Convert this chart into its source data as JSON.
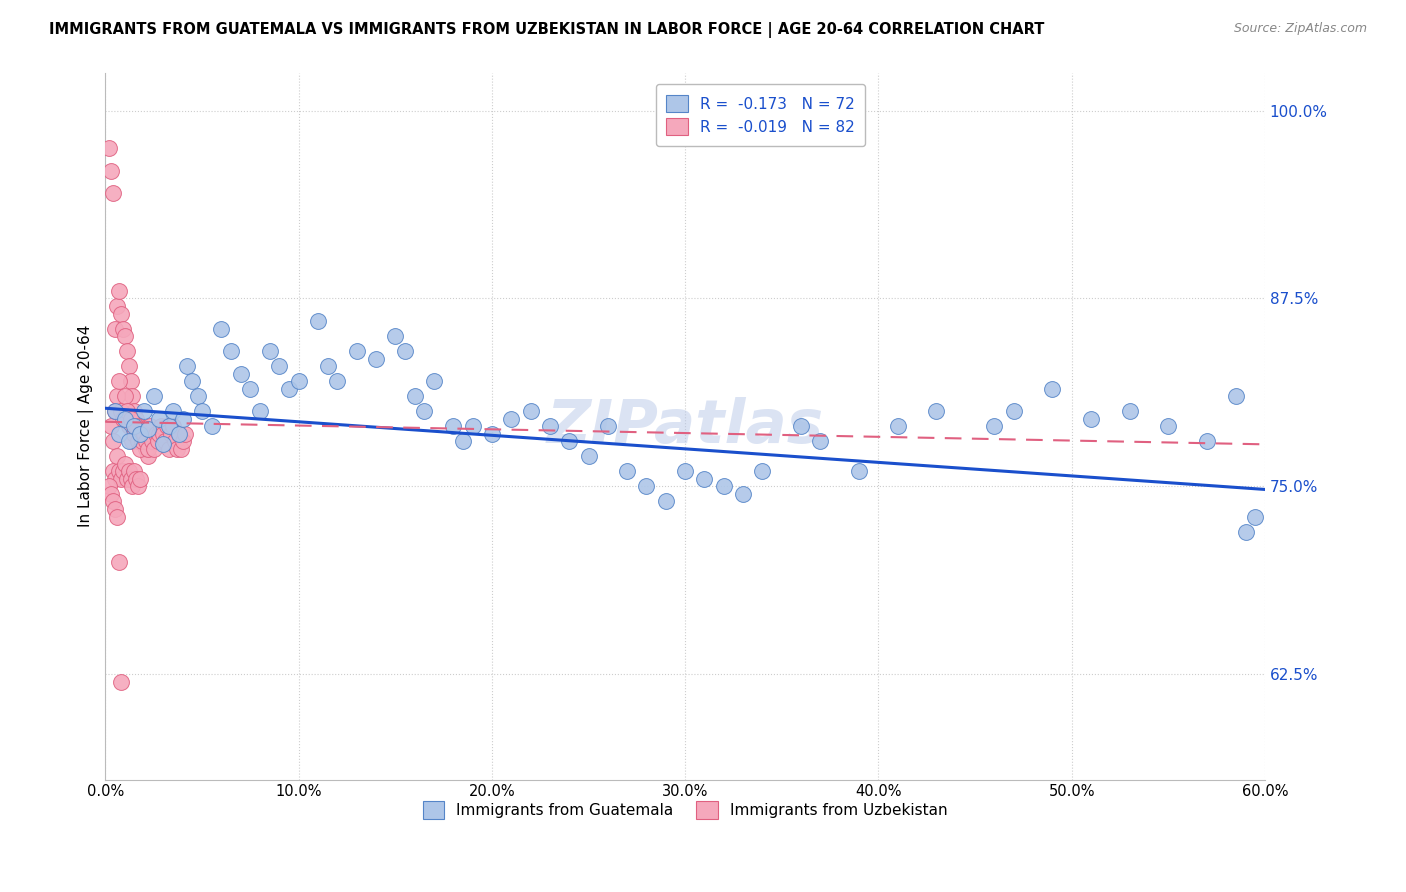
{
  "title": "IMMIGRANTS FROM GUATEMALA VS IMMIGRANTS FROM UZBEKISTAN IN LABOR FORCE | AGE 20-64 CORRELATION CHART",
  "source": "Source: ZipAtlas.com",
  "ylabel": "In Labor Force | Age 20-64",
  "xlim": [
    0.0,
    0.6
  ],
  "ylim": [
    0.555,
    1.025
  ],
  "xticks": [
    0.0,
    0.1,
    0.2,
    0.3,
    0.4,
    0.5,
    0.6
  ],
  "yticks": [
    0.625,
    0.75,
    0.875,
    1.0
  ],
  "guatemala_color": "#aec6e8",
  "uzbekistan_color": "#f5a8bc",
  "guatemala_edge": "#5585c8",
  "uzbekistan_edge": "#e06080",
  "guatemala_trend_color": "#1a4fcc",
  "uzbekistan_trend_color": "#e06080",
  "watermark": "ZIPatlas",
  "legend_r_guatemala": "R =  -0.173   N = 72",
  "legend_r_uzbekistan": "R =  -0.019   N = 82",
  "legend_bottom_guatemala": "Immigrants from Guatemala",
  "legend_bottom_uzbekistan": "Immigrants from Uzbekistan",
  "guatemala_trend_y0": 0.802,
  "guatemala_trend_y1": 0.748,
  "uzbekistan_trend_y0": 0.793,
  "uzbekistan_trend_y1": 0.778,
  "g_x": [
    0.005,
    0.007,
    0.01,
    0.012,
    0.015,
    0.018,
    0.02,
    0.022,
    0.025,
    0.028,
    0.03,
    0.033,
    0.035,
    0.038,
    0.04,
    0.042,
    0.045,
    0.048,
    0.05,
    0.055,
    0.06,
    0.065,
    0.07,
    0.075,
    0.08,
    0.085,
    0.09,
    0.095,
    0.1,
    0.11,
    0.115,
    0.12,
    0.13,
    0.14,
    0.15,
    0.155,
    0.16,
    0.165,
    0.17,
    0.18,
    0.185,
    0.19,
    0.2,
    0.21,
    0.22,
    0.23,
    0.24,
    0.25,
    0.26,
    0.27,
    0.28,
    0.29,
    0.3,
    0.31,
    0.32,
    0.33,
    0.34,
    0.36,
    0.37,
    0.39,
    0.41,
    0.43,
    0.46,
    0.47,
    0.49,
    0.51,
    0.53,
    0.55,
    0.57,
    0.585,
    0.59,
    0.595
  ],
  "g_y": [
    0.8,
    0.785,
    0.795,
    0.78,
    0.79,
    0.785,
    0.8,
    0.788,
    0.81,
    0.795,
    0.778,
    0.79,
    0.8,
    0.785,
    0.795,
    0.83,
    0.82,
    0.81,
    0.8,
    0.79,
    0.855,
    0.84,
    0.825,
    0.815,
    0.8,
    0.84,
    0.83,
    0.815,
    0.82,
    0.86,
    0.83,
    0.82,
    0.84,
    0.835,
    0.85,
    0.84,
    0.81,
    0.8,
    0.82,
    0.79,
    0.78,
    0.79,
    0.785,
    0.795,
    0.8,
    0.79,
    0.78,
    0.77,
    0.79,
    0.76,
    0.75,
    0.74,
    0.76,
    0.755,
    0.75,
    0.745,
    0.76,
    0.79,
    0.78,
    0.76,
    0.79,
    0.8,
    0.79,
    0.8,
    0.815,
    0.795,
    0.8,
    0.79,
    0.78,
    0.81,
    0.72,
    0.73
  ],
  "u_x": [
    0.002,
    0.003,
    0.004,
    0.005,
    0.006,
    0.007,
    0.008,
    0.009,
    0.01,
    0.011,
    0.012,
    0.013,
    0.014,
    0.015,
    0.016,
    0.017,
    0.018,
    0.019,
    0.02,
    0.021,
    0.022,
    0.003,
    0.004,
    0.005,
    0.006,
    0.007,
    0.008,
    0.009,
    0.01,
    0.011,
    0.012,
    0.013,
    0.014,
    0.015,
    0.016,
    0.017,
    0.018,
    0.019,
    0.02,
    0.021,
    0.022,
    0.023,
    0.024,
    0.025,
    0.026,
    0.027,
    0.028,
    0.029,
    0.03,
    0.031,
    0.032,
    0.033,
    0.034,
    0.035,
    0.036,
    0.037,
    0.038,
    0.039,
    0.04,
    0.041,
    0.004,
    0.005,
    0.006,
    0.007,
    0.008,
    0.009,
    0.01,
    0.011,
    0.012,
    0.013,
    0.014,
    0.015,
    0.016,
    0.017,
    0.018,
    0.002,
    0.003,
    0.004,
    0.005,
    0.006,
    0.007,
    0.008
  ],
  "u_y": [
    0.975,
    0.96,
    0.945,
    0.855,
    0.87,
    0.88,
    0.865,
    0.855,
    0.85,
    0.84,
    0.83,
    0.82,
    0.81,
    0.8,
    0.795,
    0.79,
    0.785,
    0.78,
    0.78,
    0.775,
    0.77,
    0.79,
    0.78,
    0.8,
    0.81,
    0.82,
    0.8,
    0.795,
    0.81,
    0.8,
    0.79,
    0.795,
    0.78,
    0.785,
    0.79,
    0.78,
    0.775,
    0.78,
    0.785,
    0.78,
    0.775,
    0.79,
    0.78,
    0.775,
    0.785,
    0.78,
    0.785,
    0.79,
    0.785,
    0.78,
    0.79,
    0.775,
    0.785,
    0.79,
    0.78,
    0.775,
    0.785,
    0.775,
    0.78,
    0.785,
    0.76,
    0.755,
    0.77,
    0.76,
    0.755,
    0.76,
    0.765,
    0.755,
    0.76,
    0.755,
    0.75,
    0.76,
    0.755,
    0.75,
    0.755,
    0.75,
    0.745,
    0.74,
    0.735,
    0.73,
    0.7,
    0.62
  ]
}
